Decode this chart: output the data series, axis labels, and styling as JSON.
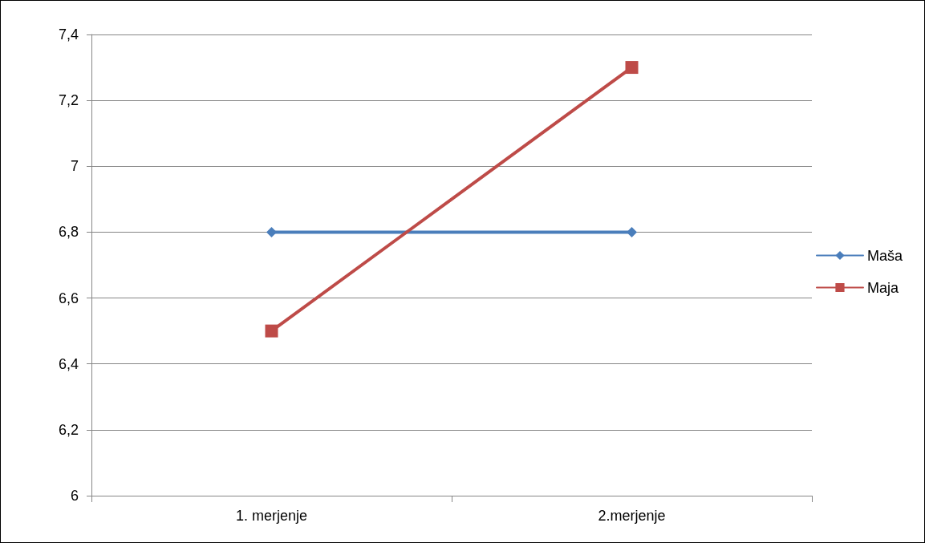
{
  "chart_data": {
    "type": "line",
    "categories": [
      "1. merjenje",
      "2.merjenje"
    ],
    "series": [
      {
        "name": "Maša",
        "color": "#4a7ebb",
        "values": [
          6.8,
          6.8
        ],
        "marker": "diamond"
      },
      {
        "name": "Maja",
        "color": "#be4b48",
        "values": [
          6.5,
          7.3
        ],
        "marker": "square"
      }
    ],
    "ylim": [
      6,
      7.4
    ],
    "yticks": [
      6,
      {
        "value": 6.2,
        "label": "6,2"
      },
      {
        "value": 6.4,
        "label": "6,4"
      },
      {
        "value": 6.6,
        "label": "6,6"
      },
      {
        "value": 6.8,
        "label": "6,8"
      },
      7,
      {
        "value": 7.2,
        "label": "7,2"
      },
      {
        "value": 7.4,
        "label": "7,4"
      }
    ],
    "grid": "y",
    "legend": "right",
    "line_style": "solid"
  }
}
